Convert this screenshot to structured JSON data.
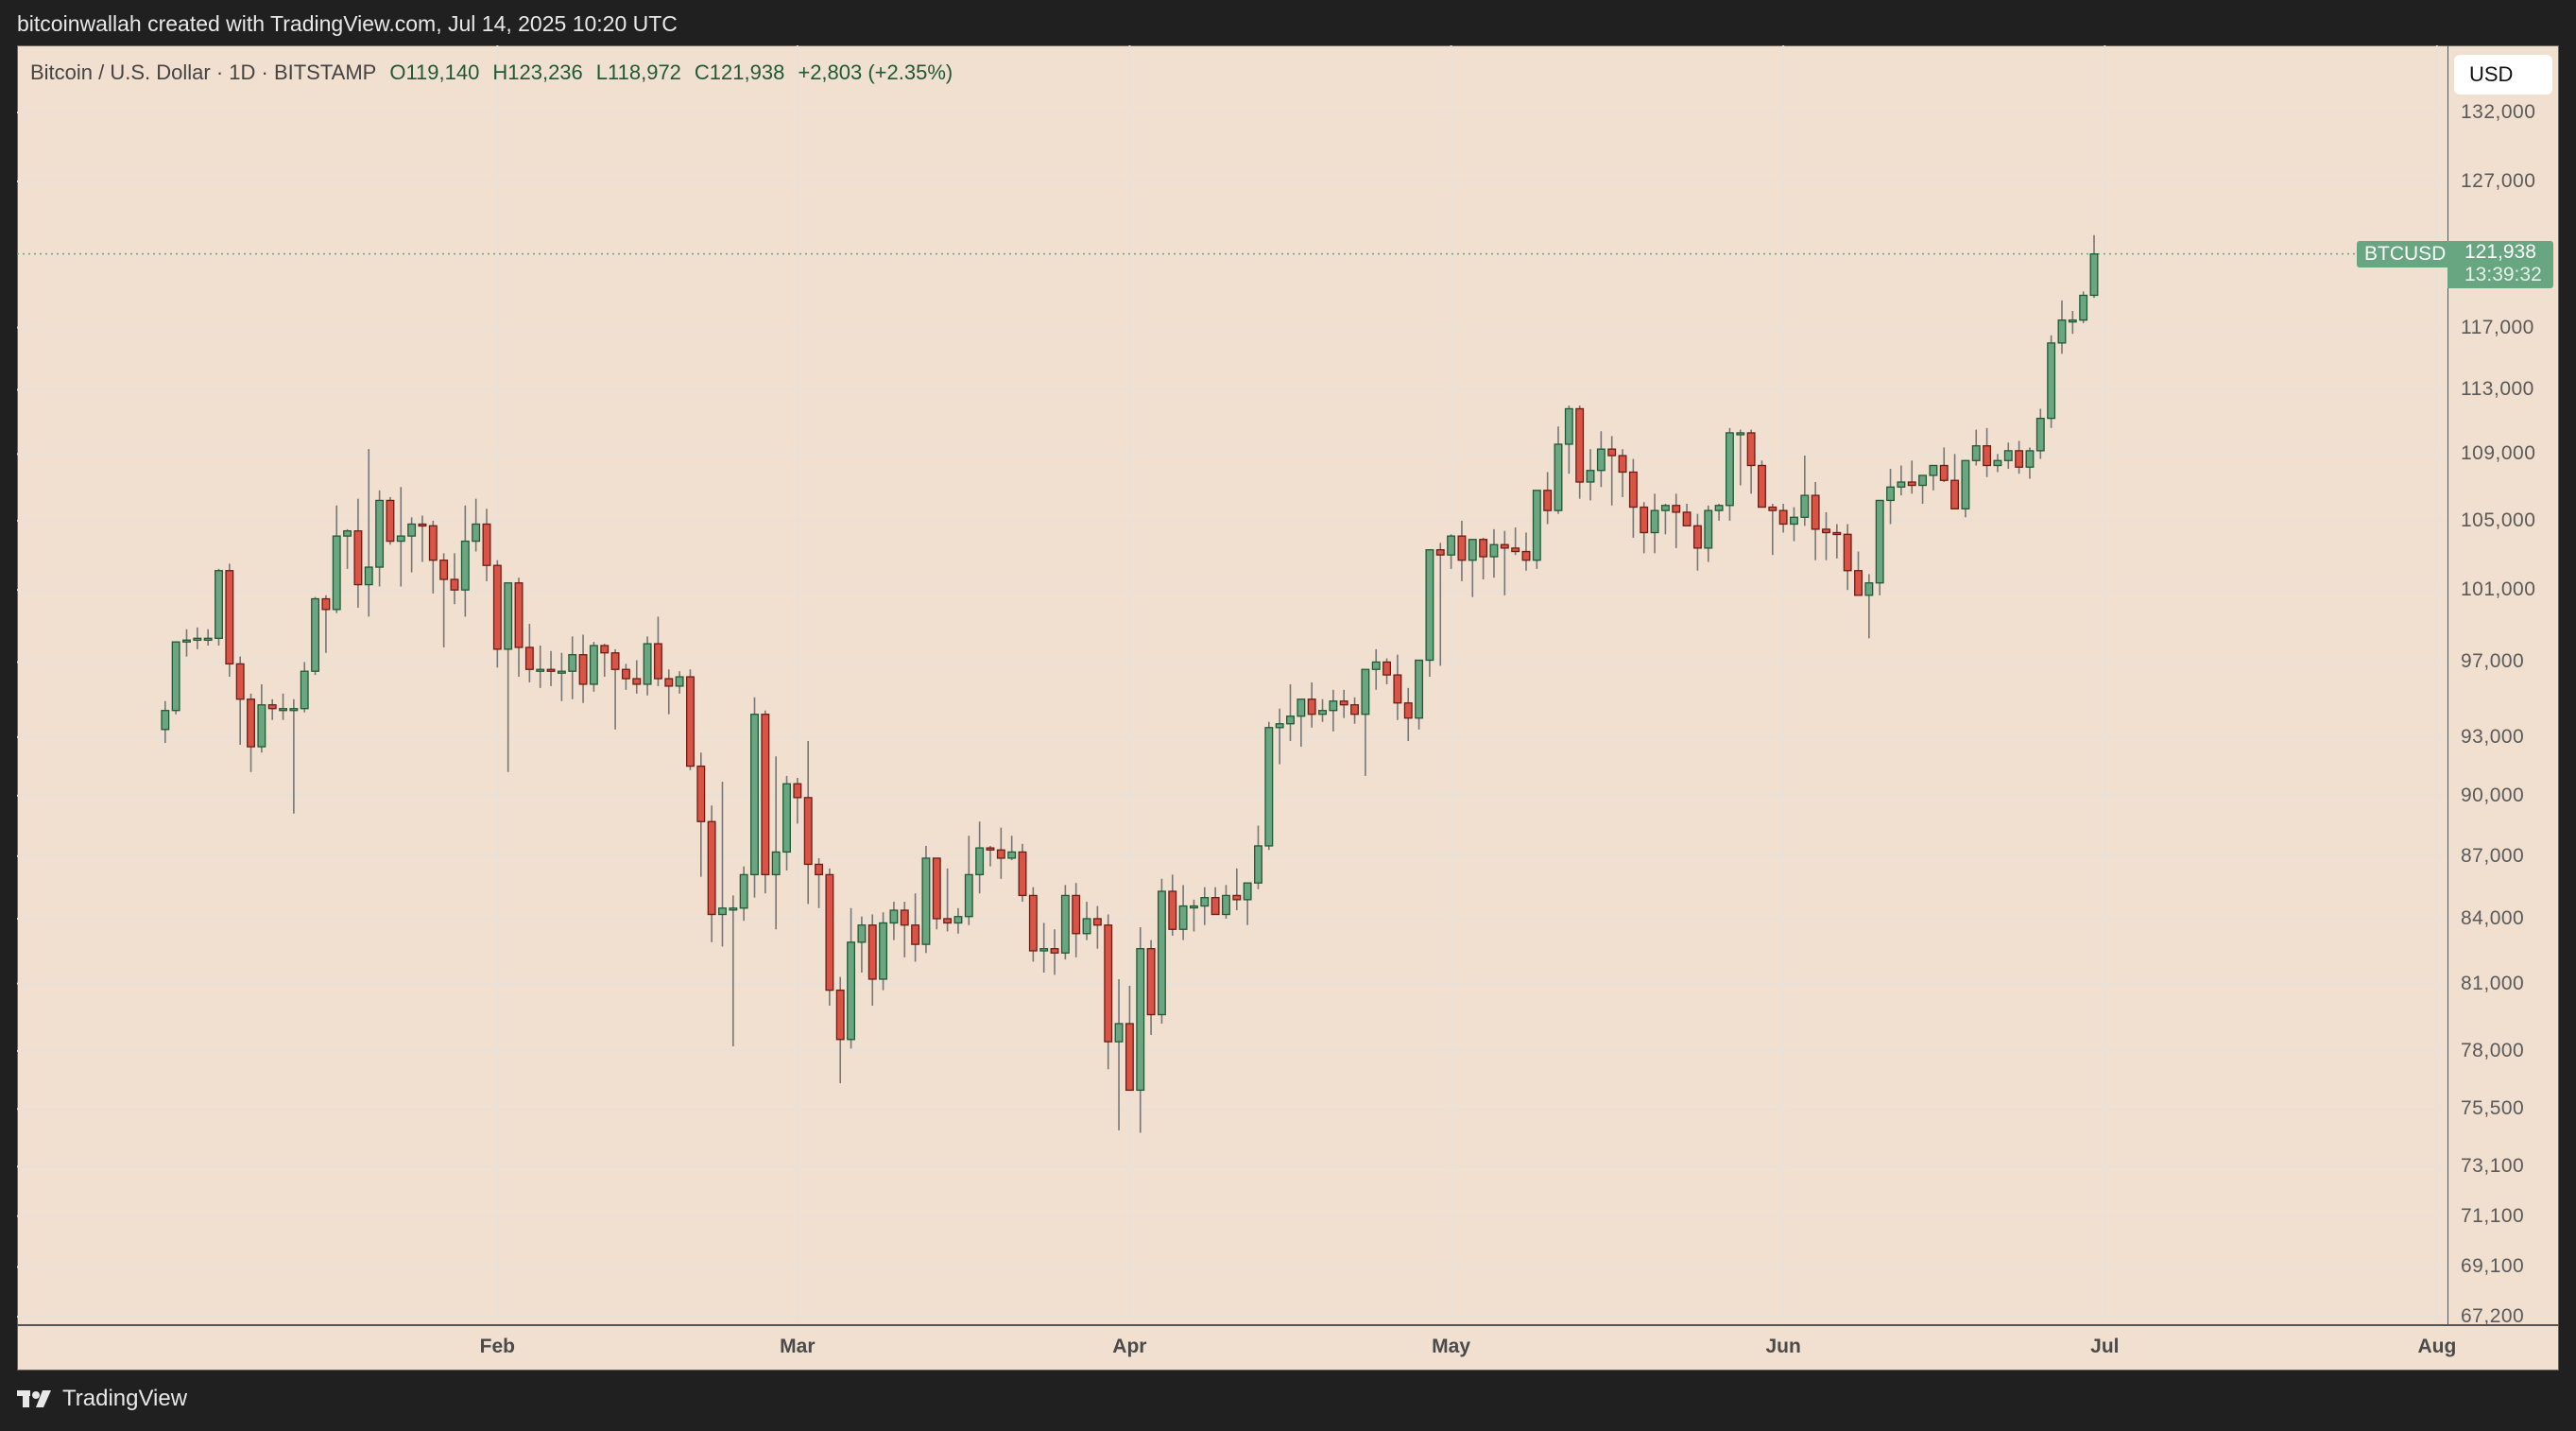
{
  "header": {
    "attribution": "bitcoinwallah created with TradingView.com, Jul 14, 2025 10:20 UTC"
  },
  "legend": {
    "symbol": "Bitcoin / U.S. Dollar · 1D · BITSTAMP",
    "open": "O119,140",
    "high": "H123,236",
    "low": "L118,972",
    "close": "C121,938",
    "change": "+2,803 (+2.35%)"
  },
  "price_axis": {
    "currency_button": "USD",
    "ticks": [
      "132,000",
      "127,000",
      "117,000",
      "113,000",
      "109,000",
      "105,000",
      "101,000",
      "97,000",
      "93,000",
      "90,000",
      "87,000",
      "84,000",
      "81,000",
      "78,000",
      "75,500",
      "73,100",
      "71,100",
      "69,100",
      "67,200"
    ]
  },
  "time_axis": {
    "months": [
      "Feb",
      "Mar",
      "Apr",
      "May",
      "Jun",
      "Jul",
      "Aug"
    ]
  },
  "last_price": {
    "symbol_tag": "BTCUSD",
    "price": "121,938",
    "countdown": "13:39:32"
  },
  "footer": {
    "brand": "TradingView"
  },
  "colors": {
    "background": "#f1dfcf",
    "frame": "#202020",
    "up": "#6aa682",
    "up_border": "#1f5a35",
    "down": "#d95444",
    "down_border": "#6e1c16",
    "wick": "#777777",
    "grid": "#e9e0d8"
  },
  "chart_data": {
    "type": "candlestick",
    "title": "Bitcoin / U.S. Dollar · 1D · BITSTAMP",
    "xlabel": "",
    "ylabel": "USD",
    "y_scale": "log",
    "ylim": [
      66500,
      134000
    ],
    "grid": true,
    "x_month_ticks": [
      "Feb",
      "Mar",
      "Apr",
      "May",
      "Jun",
      "Jul",
      "Aug"
    ],
    "y_ticks": [
      132000,
      127000,
      117000,
      113000,
      109000,
      105000,
      101000,
      97000,
      93000,
      90000,
      87000,
      84000,
      81000,
      78000,
      75500,
      73100,
      71100,
      69100,
      67200
    ],
    "last": {
      "open": 119140,
      "high": 123236,
      "low": 118972,
      "close": 121938,
      "change": 2803,
      "change_pct": 2.35,
      "date": "Jul 14, 2025"
    },
    "ohlc_columns": [
      "open",
      "high",
      "low",
      "close"
    ],
    "start_date": "2025-01-01",
    "ohlc": [
      [
        93400,
        94900,
        92700,
        94400
      ],
      [
        94400,
        97800,
        94200,
        98100
      ],
      [
        98100,
        98800,
        97300,
        98200
      ],
      [
        98200,
        98900,
        97700,
        98300
      ],
      [
        98300,
        98800,
        97900,
        98300
      ],
      [
        98300,
        102200,
        97900,
        102100
      ],
      [
        102100,
        102500,
        96200,
        96900
      ],
      [
        96900,
        97300,
        92600,
        95000
      ],
      [
        95000,
        95300,
        91200,
        92500
      ],
      [
        92500,
        95800,
        92200,
        94700
      ],
      [
        94700,
        95000,
        93900,
        94500
      ],
      [
        94500,
        95300,
        93900,
        94500
      ],
      [
        94500,
        95000,
        89100,
        94500
      ],
      [
        94500,
        97000,
        94300,
        96500
      ],
      [
        96500,
        100600,
        96300,
        100500
      ],
      [
        100500,
        100700,
        97500,
        99900
      ],
      [
        99900,
        105900,
        99700,
        104100
      ],
      [
        104100,
        104500,
        102200,
        104400
      ],
      [
        104400,
        106300,
        100000,
        101300
      ],
      [
        101300,
        109300,
        99500,
        102300
      ],
      [
        102300,
        106800,
        101200,
        106200
      ],
      [
        106200,
        106400,
        103600,
        103800
      ],
      [
        103800,
        107000,
        101200,
        104100
      ],
      [
        104100,
        105200,
        102000,
        104800
      ],
      [
        104800,
        105300,
        102600,
        104700
      ],
      [
        104700,
        105000,
        100800,
        102700
      ],
      [
        102700,
        103100,
        97800,
        101600
      ],
      [
        101600,
        103100,
        100200,
        101000
      ],
      [
        101000,
        105900,
        99500,
        103800
      ],
      [
        103800,
        106300,
        103200,
        104800
      ],
      [
        104800,
        105700,
        101500,
        102400
      ],
      [
        102400,
        102700,
        96700,
        97700
      ],
      [
        97700,
        100600,
        91200,
        101400
      ],
      [
        101400,
        101700,
        96200,
        97800
      ],
      [
        97800,
        99100,
        95900,
        96600
      ],
      [
        96600,
        97900,
        95600,
        96600
      ],
      [
        96600,
        97600,
        95700,
        96500
      ],
      [
        96500,
        97500,
        94900,
        96500
      ],
      [
        96500,
        98400,
        95000,
        97400
      ],
      [
        97400,
        98500,
        94800,
        95800
      ],
      [
        95800,
        98100,
        95400,
        97900
      ],
      [
        97900,
        98000,
        96200,
        97500
      ],
      [
        97500,
        97700,
        93400,
        96600
      ],
      [
        96600,
        96900,
        95500,
        96100
      ],
      [
        96100,
        97100,
        95300,
        95800
      ],
      [
        95800,
        98400,
        95200,
        98000
      ],
      [
        98000,
        99500,
        95700,
        96100
      ],
      [
        96100,
        96600,
        94200,
        95700
      ],
      [
        95700,
        96500,
        95300,
        96200
      ],
      [
        96200,
        96600,
        91300,
        91500
      ],
      [
        91500,
        92200,
        86000,
        88700
      ],
      [
        88700,
        89500,
        82900,
        84200
      ],
      [
        84200,
        90700,
        82700,
        84500
      ],
      [
        84500,
        85100,
        78200,
        84500
      ],
      [
        84500,
        86500,
        83900,
        86100
      ],
      [
        86100,
        95100,
        85000,
        94200
      ],
      [
        94200,
        94400,
        85200,
        86100
      ],
      [
        86100,
        92000,
        83500,
        87200
      ],
      [
        87200,
        91000,
        86300,
        90600
      ],
      [
        90600,
        90900,
        88600,
        89900
      ],
      [
        89900,
        92800,
        84700,
        86600
      ],
      [
        86600,
        86900,
        84500,
        86100
      ],
      [
        86100,
        86400,
        80000,
        80700
      ],
      [
        80700,
        81300,
        76600,
        78500
      ],
      [
        78500,
        84500,
        78100,
        82900
      ],
      [
        82900,
        84100,
        81500,
        83700
      ],
      [
        83700,
        84200,
        80000,
        81200
      ],
      [
        81200,
        84300,
        80700,
        83800
      ],
      [
        83800,
        84800,
        83000,
        84400
      ],
      [
        84400,
        84800,
        82200,
        83700
      ],
      [
        83700,
        85200,
        82000,
        82800
      ],
      [
        82800,
        87500,
        82400,
        86900
      ],
      [
        86900,
        86400,
        83500,
        84000
      ],
      [
        84000,
        86400,
        83400,
        83800
      ],
      [
        83800,
        84500,
        83300,
        84100
      ],
      [
        84100,
        88000,
        83700,
        86100
      ],
      [
        86100,
        88700,
        85200,
        87400
      ],
      [
        87400,
        87500,
        86500,
        87300
      ],
      [
        87300,
        88400,
        85900,
        86900
      ],
      [
        86900,
        88000,
        86800,
        87200
      ],
      [
        87200,
        87600,
        84800,
        85100
      ],
      [
        85100,
        85500,
        82000,
        82500
      ],
      [
        82500,
        83800,
        81500,
        82600
      ],
      [
        82600,
        83500,
        81400,
        82400
      ],
      [
        82400,
        85600,
        82100,
        85100
      ],
      [
        85100,
        85700,
        82200,
        83300
      ],
      [
        83300,
        84800,
        83000,
        84000
      ],
      [
        84000,
        84600,
        82600,
        83700
      ],
      [
        83700,
        84200,
        77200,
        78400
      ],
      [
        78400,
        81200,
        74600,
        79200
      ],
      [
        79200,
        80900,
        76300,
        76300
      ],
      [
        76300,
        83600,
        74500,
        82600
      ],
      [
        82600,
        83000,
        78700,
        79600
      ],
      [
        79600,
        85900,
        79200,
        85300
      ],
      [
        85300,
        86100,
        83200,
        83500
      ],
      [
        83500,
        85600,
        83000,
        84600
      ],
      [
        84600,
        84900,
        83400,
        84600
      ],
      [
        84600,
        85500,
        83700,
        85000
      ],
      [
        85000,
        85500,
        84400,
        84200
      ],
      [
        84200,
        85600,
        84000,
        85100
      ],
      [
        85100,
        86400,
        84400,
        84900
      ],
      [
        84900,
        85300,
        83700,
        85700
      ],
      [
        85700,
        88500,
        85400,
        87500
      ],
      [
        87500,
        93800,
        87300,
        93500
      ],
      [
        93500,
        94500,
        91600,
        93700
      ],
      [
        93700,
        95800,
        92800,
        94100
      ],
      [
        94100,
        94700,
        92500,
        95000
      ],
      [
        95000,
        95900,
        93500,
        94200
      ],
      [
        94200,
        95000,
        93800,
        94400
      ],
      [
        94400,
        95500,
        93300,
        94900
      ],
      [
        94900,
        95500,
        94000,
        94700
      ],
      [
        94700,
        95100,
        93700,
        94200
      ],
      [
        94200,
        94400,
        91000,
        96600
      ],
      [
        96600,
        97700,
        95500,
        97000
      ],
      [
        97000,
        97200,
        95800,
        96300
      ],
      [
        96300,
        97400,
        93900,
        94800
      ],
      [
        94800,
        95600,
        92800,
        94000
      ],
      [
        94000,
        96000,
        93400,
        97100
      ],
      [
        97100,
        97400,
        96200,
        103300
      ],
      [
        103300,
        103700,
        96800,
        103000
      ],
      [
        103000,
        104200,
        102200,
        104100
      ],
      [
        104100,
        105000,
        101500,
        102700
      ],
      [
        102700,
        103900,
        100600,
        103900
      ],
      [
        103900,
        104000,
        101600,
        102900
      ],
      [
        102900,
        104500,
        101700,
        103600
      ],
      [
        103600,
        104400,
        100700,
        103400
      ],
      [
        103400,
        104600,
        103000,
        103200
      ],
      [
        103200,
        104300,
        102100,
        102700
      ],
      [
        102700,
        106500,
        102200,
        106800
      ],
      [
        106800,
        107900,
        104800,
        105600
      ],
      [
        105600,
        110700,
        105400,
        109600
      ],
      [
        109600,
        112000,
        107800,
        111800
      ],
      [
        111800,
        112000,
        106300,
        107300
      ],
      [
        107300,
        109300,
        106200,
        108000
      ],
      [
        108000,
        110400,
        107000,
        109300
      ],
      [
        109300,
        110100,
        105900,
        108900
      ],
      [
        108900,
        109300,
        106400,
        107900
      ],
      [
        107900,
        108700,
        104000,
        105800
      ],
      [
        105800,
        106100,
        103100,
        104300
      ],
      [
        104300,
        106600,
        103100,
        105600
      ],
      [
        105600,
        106000,
        104200,
        105900
      ],
      [
        105900,
        106600,
        103400,
        105500
      ],
      [
        105500,
        106000,
        104700,
        104700
      ],
      [
        104700,
        105400,
        102100,
        103400
      ],
      [
        103400,
        105900,
        102600,
        105600
      ],
      [
        105600,
        106000,
        105000,
        105900
      ],
      [
        105900,
        110600,
        105000,
        110300
      ],
      [
        110300,
        110500,
        107100,
        110300
      ],
      [
        110300,
        110500,
        106600,
        108300
      ],
      [
        108300,
        108600,
        105800,
        105800
      ],
      [
        105800,
        106000,
        103000,
        105600
      ],
      [
        105600,
        106000,
        104300,
        104800
      ],
      [
        104800,
        105800,
        103800,
        105200
      ],
      [
        105200,
        108900,
        104700,
        106500
      ],
      [
        106500,
        107300,
        102700,
        104500
      ],
      [
        104500,
        105500,
        102700,
        104300
      ],
      [
        104300,
        104800,
        102800,
        104200
      ],
      [
        104200,
        104800,
        101000,
        102100
      ],
      [
        102100,
        103200,
        100900,
        100700
      ],
      [
        100700,
        101900,
        98300,
        101400
      ],
      [
        101400,
        106100,
        100700,
        106200
      ],
      [
        106200,
        108100,
        104800,
        107000
      ],
      [
        107000,
        108300,
        106500,
        107300
      ],
      [
        107300,
        108600,
        106600,
        107100
      ],
      [
        107100,
        107600,
        106000,
        107700
      ],
      [
        107700,
        108000,
        106800,
        108300
      ],
      [
        108300,
        109400,
        107300,
        107400
      ],
      [
        107400,
        109000,
        106800,
        105700
      ],
      [
        105700,
        107300,
        105200,
        108600
      ],
      [
        108600,
        110500,
        108300,
        109500
      ],
      [
        109500,
        110600,
        107600,
        108300
      ],
      [
        108300,
        109000,
        107900,
        108600
      ],
      [
        108600,
        109700,
        108100,
        109200
      ],
      [
        109200,
        109800,
        107800,
        108200
      ],
      [
        108200,
        109400,
        107500,
        109200
      ],
      [
        109200,
        111800,
        108700,
        111200
      ],
      [
        111200,
        116500,
        110600,
        116000
      ],
      [
        116000,
        118800,
        115300,
        117500
      ],
      [
        117500,
        118100,
        116600,
        117500
      ],
      [
        117500,
        119400,
        117300,
        119140
      ],
      [
        119140,
        123236,
        118972,
        121938
      ]
    ]
  }
}
